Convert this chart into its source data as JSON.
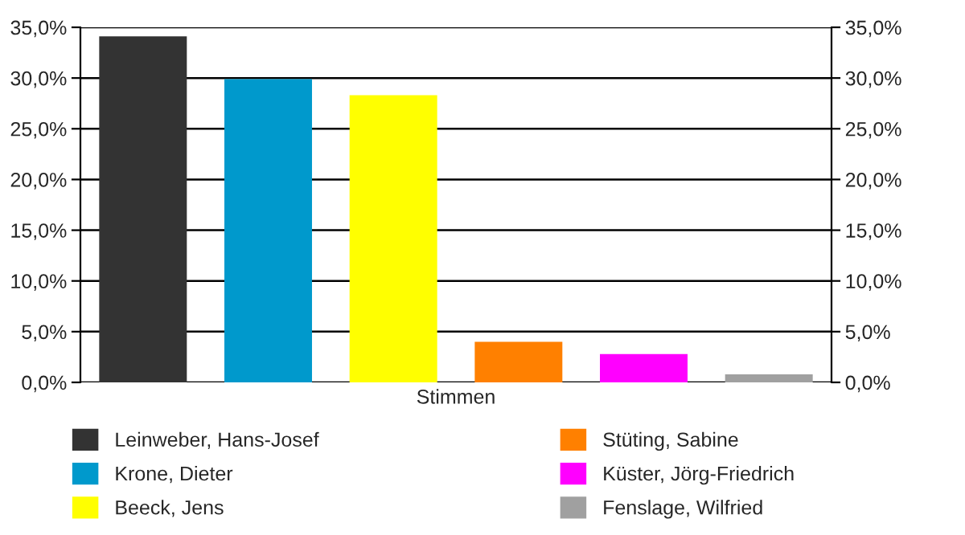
{
  "chart_data": {
    "type": "bar",
    "categories": [
      "Stimmen"
    ],
    "series": [
      {
        "name": "Leinweber, Hans-Josef",
        "color": "#333333",
        "values": [
          34.1
        ]
      },
      {
        "name": "Krone, Dieter",
        "color": "#0099cc",
        "values": [
          29.9
        ]
      },
      {
        "name": "Beeck, Jens",
        "color": "#ffff00",
        "values": [
          28.3
        ]
      },
      {
        "name": "Stüting, Sabine",
        "color": "#ff8000",
        "values": [
          4.0
        ]
      },
      {
        "name": "Küster, Jörg-Friedrich",
        "color": "#ff00ff",
        "values": [
          2.8
        ]
      },
      {
        "name": "Fenslage, Wilfried",
        "color": "#a0a0a0",
        "values": [
          0.8
        ]
      }
    ],
    "ylim": [
      0,
      35
    ],
    "yticks": [
      {
        "value": 0,
        "label": "0,0%"
      },
      {
        "value": 5,
        "label": "5,0%"
      },
      {
        "value": 10,
        "label": "10,0%"
      },
      {
        "value": 15,
        "label": "15,0%"
      },
      {
        "value": 20,
        "label": "20,0%"
      },
      {
        "value": 25,
        "label": "25,0%"
      },
      {
        "value": 30,
        "label": "30,0%"
      },
      {
        "value": 35,
        "label": "35,0%"
      }
    ],
    "grid": "y",
    "legend": "bottom"
  }
}
